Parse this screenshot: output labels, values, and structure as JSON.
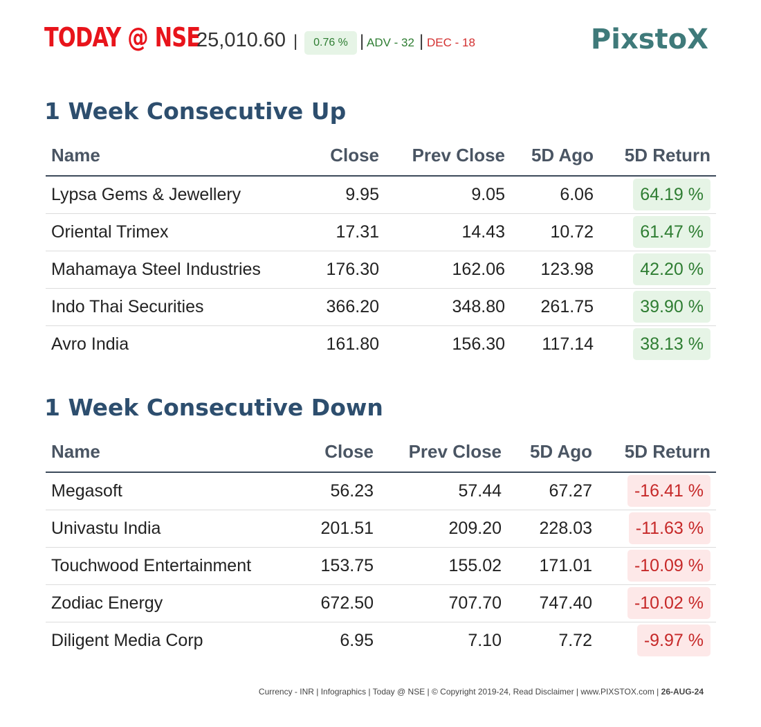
{
  "header": {
    "brand_title": "TODAY @ NSE",
    "index_value": "25,010.60",
    "separator": "|",
    "change": "0.76 %",
    "advances": "ADV - 32",
    "declines": "DEC - 18",
    "logo": "PixstoX"
  },
  "colors": {
    "brand_red": "#e8141b",
    "heading_blue": "#2d4e6e",
    "link_blue": "#2e7aa8",
    "up_green": "#2e7d32",
    "up_bg": "#e6f4e6",
    "down_red": "#c62828",
    "down_bg": "#fde8e8",
    "logo_teal": "#3f7a7a"
  },
  "up_section": {
    "title": "1 Week Consecutive Up",
    "columns": [
      "Name",
      "Close",
      "Prev Close",
      "5D Ago",
      "5D Return"
    ],
    "rows": [
      {
        "name": "Lypsa Gems & Jewellery",
        "close": "9.95",
        "prev_close": "9.05",
        "ago5d": "6.06",
        "ret5d": "64.19 %"
      },
      {
        "name": "Oriental Trimex",
        "close": "17.31",
        "prev_close": "14.43",
        "ago5d": "10.72",
        "ret5d": "61.47 %"
      },
      {
        "name": "Mahamaya Steel Industries",
        "close": "176.30",
        "prev_close": "162.06",
        "ago5d": "123.98",
        "ret5d": "42.20 %"
      },
      {
        "name": "Indo Thai Securities",
        "close": "366.20",
        "prev_close": "348.80",
        "ago5d": "261.75",
        "ret5d": "39.90 %"
      },
      {
        "name": "Avro India",
        "close": "161.80",
        "prev_close": "156.30",
        "ago5d": "117.14",
        "ret5d": "38.13 %"
      }
    ]
  },
  "down_section": {
    "title": "1 Week Consecutive Down",
    "columns": [
      "Name",
      "Close",
      "Prev Close",
      "5D Ago",
      "5D Return"
    ],
    "rows": [
      {
        "name": "Megasoft",
        "close": "56.23",
        "prev_close": "57.44",
        "ago5d": "67.27",
        "ret5d": "-16.41 %"
      },
      {
        "name": "Univastu India",
        "close": "201.51",
        "prev_close": "209.20",
        "ago5d": "228.03",
        "ret5d": "-11.63 %"
      },
      {
        "name": "Touchwood Entertainment",
        "close": "153.75",
        "prev_close": "155.02",
        "ago5d": "171.01",
        "ret5d": "-10.09 %"
      },
      {
        "name": "Zodiac Energy",
        "close": "672.50",
        "prev_close": "707.70",
        "ago5d": "747.40",
        "ret5d": "-10.02 %"
      },
      {
        "name": "Diligent Media Corp",
        "close": "6.95",
        "prev_close": "7.10",
        "ago5d": "7.72",
        "ret5d": "-9.97 %"
      }
    ]
  },
  "footer": {
    "text": "Currency - INR | Infographics | Today @ NSE | © Copyright 2019-24, Read Disclaimer | www.PIXSTOX.com | ",
    "date": "26-AUG-24"
  }
}
